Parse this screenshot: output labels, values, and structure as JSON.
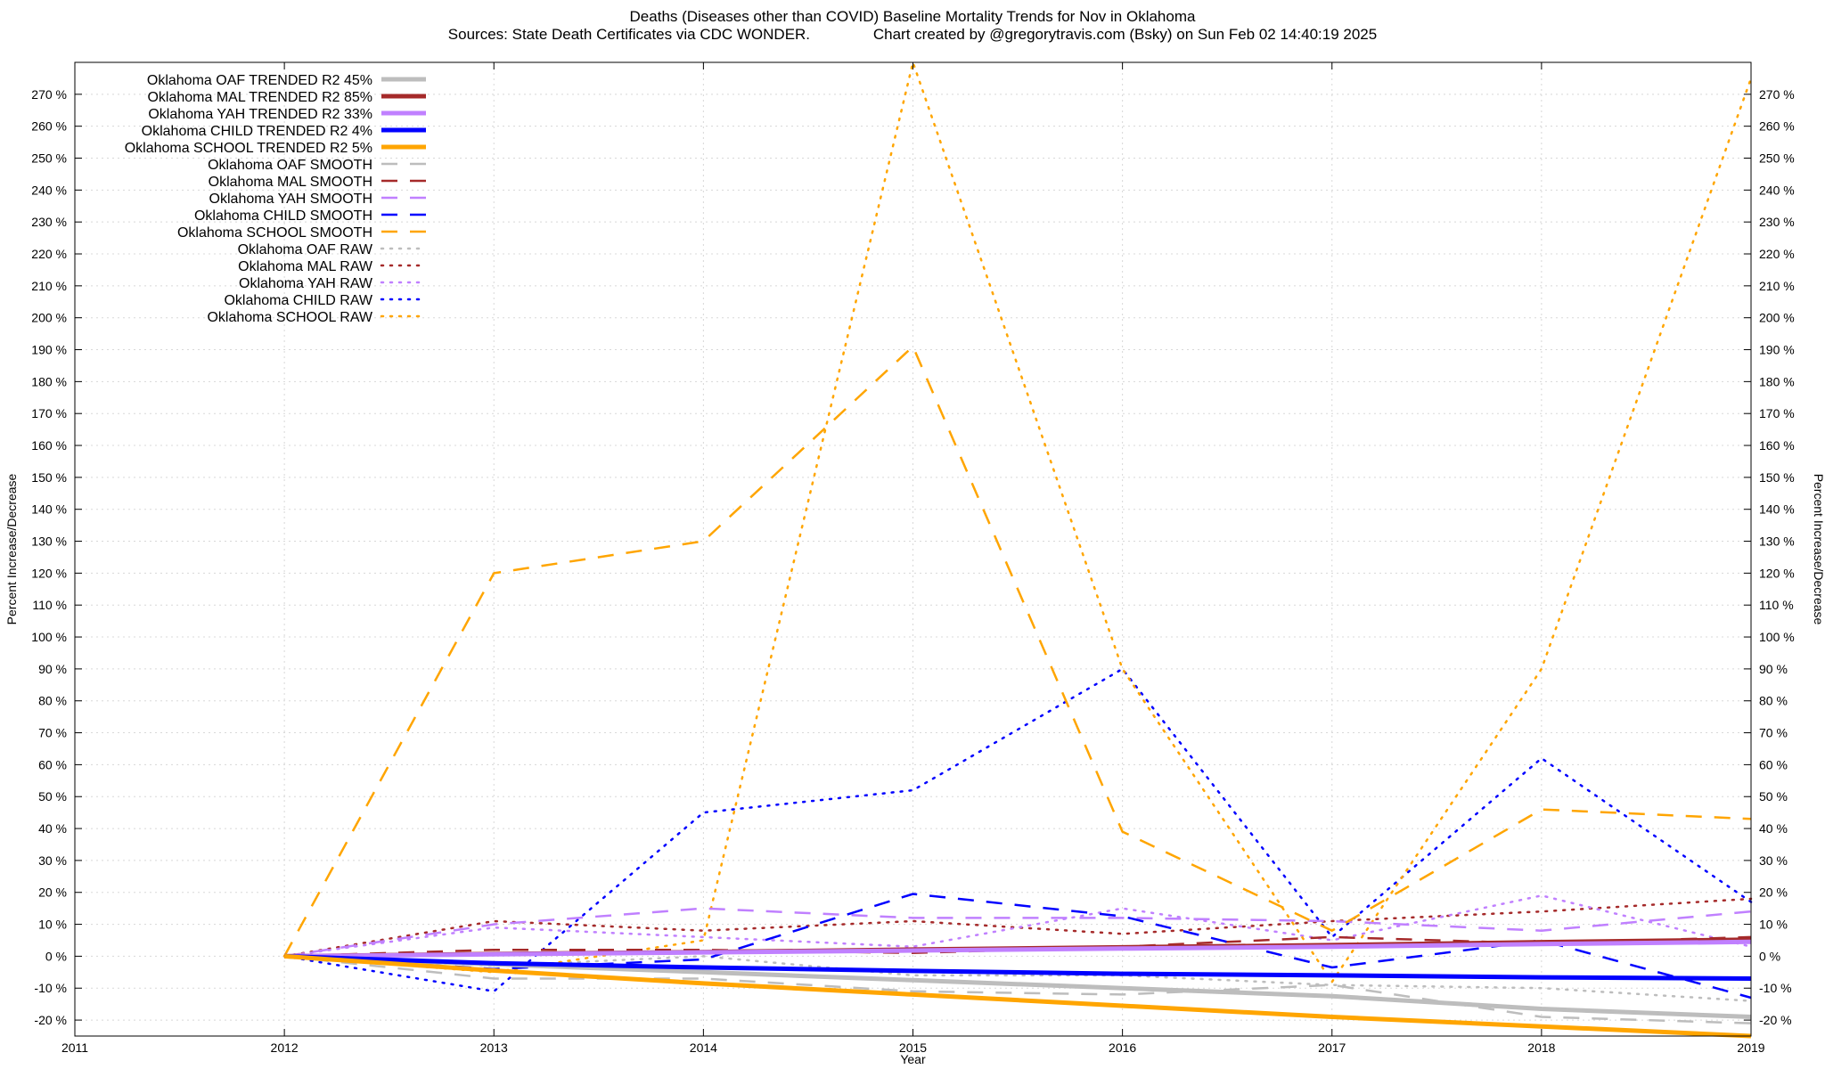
{
  "chart_data": {
    "type": "line",
    "title": "Deaths (Diseases other than COVID)  Baseline Mortality Trends for Nov in Oklahoma",
    "subtitle": "Sources: State Death Certificates via CDC WONDER.               Chart created by @gregorytravis.com (Bsky) on Sun Feb 02 14:40:19 2025",
    "xlabel": "Year",
    "ylabel": "Percent Increase/Decrease",
    "y2label": "Percent Increase/Decrease",
    "xlim": [
      2011,
      2019
    ],
    "ylim": [
      -25,
      280
    ],
    "grid": true,
    "legend_position": "top-left",
    "x_ticks": [
      "2011",
      "2012",
      "2013",
      "2014",
      "2015",
      "2016",
      "2017",
      "2018",
      "2019"
    ],
    "y_ticks": [
      "-20 %",
      "-10 %",
      "0 %",
      "10 %",
      "20 %",
      "30 %",
      "40 %",
      "50 %",
      "60 %",
      "70 %",
      "80 %",
      "90 %",
      "100 %",
      "110 %",
      "120 %",
      "130 %",
      "140 %",
      "150 %",
      "160 %",
      "170 %",
      "180 %",
      "190 %",
      "200 %",
      "210 %",
      "220 %",
      "230 %",
      "240 %",
      "250 %",
      "260 %",
      "270 %"
    ],
    "x": [
      2012,
      2013,
      2014,
      2015,
      2016,
      2017,
      2018,
      2019
    ],
    "series": [
      {
        "name": "Oklahoma OAF TRENDED R2  45%",
        "style": "trend",
        "color": "#bdbdbd",
        "values": [
          0,
          -2.5,
          -5,
          -7.5,
          -10,
          -12.5,
          -16.5,
          -19
        ]
      },
      {
        "name": "Oklahoma MAL TRENDED R2  85%",
        "style": "trend",
        "color": "#a52a2a",
        "values": [
          0,
          0.7,
          1.3,
          2.1,
          2.8,
          3.5,
          4.4,
          5.2
        ]
      },
      {
        "name": "Oklahoma YAH TRENDED R2  33%",
        "style": "trend",
        "color": "#c080ff",
        "values": [
          0,
          0.6,
          1.2,
          1.8,
          2.4,
          3.0,
          3.8,
          4.5
        ]
      },
      {
        "name": "Oklahoma CHILD TRENDED R2  4%",
        "style": "trend",
        "color": "#0000ff",
        "values": [
          0,
          -2.2,
          -3.5,
          -4.6,
          -5.5,
          -6,
          -6.6,
          -7
        ]
      },
      {
        "name": "Oklahoma SCHOOL TRENDED R2  5%",
        "style": "trend",
        "color": "#ffa500",
        "values": [
          0,
          -4.5,
          -8.5,
          -12,
          -15.5,
          -19,
          -22,
          -25
        ]
      },
      {
        "name": "Oklahoma OAF SMOOTH",
        "style": "smooth",
        "color": "#bdbdbd",
        "values": [
          0,
          -7,
          -7,
          -11,
          -12,
          -9,
          -19,
          -21
        ]
      },
      {
        "name": "Oklahoma MAL SMOOTH",
        "style": "smooth",
        "color": "#a52a2a",
        "values": [
          0,
          2,
          2,
          1,
          3,
          6,
          4,
          6
        ]
      },
      {
        "name": "Oklahoma YAH SMOOTH",
        "style": "smooth",
        "color": "#c080ff",
        "values": [
          0,
          10,
          15,
          12,
          12,
          11,
          8,
          14
        ]
      },
      {
        "name": "Oklahoma CHILD SMOOTH",
        "style": "smooth",
        "color": "#0000ff",
        "values": [
          0,
          -4,
          -1,
          19.5,
          12.5,
          -3.5,
          5,
          -13
        ]
      },
      {
        "name": "Oklahoma SCHOOL SMOOTH",
        "style": "smooth",
        "color": "#ffa500",
        "values": [
          0,
          120,
          130,
          191,
          39,
          8,
          46,
          43
        ]
      },
      {
        "name": "Oklahoma OAF RAW",
        "style": "raw",
        "color": "#bdbdbd",
        "values": [
          0,
          -3,
          0,
          -6,
          -6,
          -9,
          -10,
          -14
        ]
      },
      {
        "name": "Oklahoma MAL RAW",
        "style": "raw",
        "color": "#a52a2a",
        "values": [
          0,
          11,
          8,
          11,
          7,
          11,
          14,
          18
        ]
      },
      {
        "name": "Oklahoma YAH RAW",
        "style": "raw",
        "color": "#c080ff",
        "values": [
          0,
          9,
          6,
          3,
          15,
          5,
          19,
          3
        ]
      },
      {
        "name": "Oklahoma CHILD RAW",
        "style": "raw",
        "color": "#0000ff",
        "values": [
          0,
          -11,
          45,
          52,
          90,
          6,
          62,
          17
        ]
      },
      {
        "name": "Oklahoma SCHOOL RAW",
        "style": "raw",
        "color": "#ffa500",
        "values": [
          0,
          -5,
          5,
          280,
          90,
          -8,
          90,
          275
        ]
      }
    ]
  }
}
